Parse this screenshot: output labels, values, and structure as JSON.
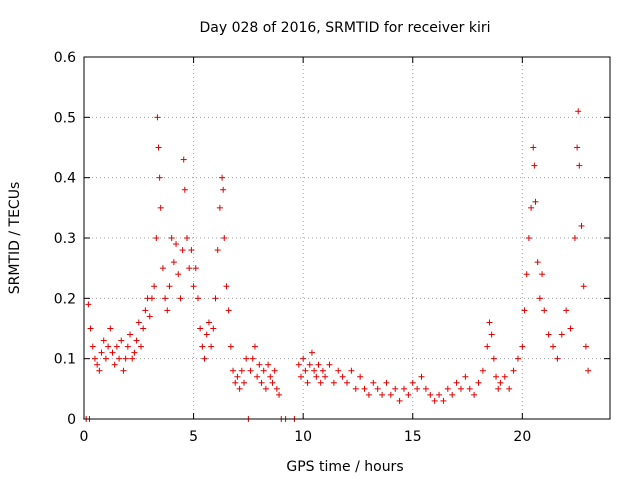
{
  "chart_data": {
    "type": "scatter",
    "title": "Day 028 of 2016, SRMTID for receiver kiri",
    "xlabel": "GPS time / hours",
    "ylabel": "SRMTID / TECUs",
    "xlim": [
      0,
      24
    ],
    "ylim": [
      0,
      0.6
    ],
    "xticks": [
      0,
      5,
      10,
      15,
      20
    ],
    "yticks": [
      0,
      0.1,
      0.2,
      0.3,
      0.4,
      0.5,
      0.6
    ],
    "xtick_labels": [
      "0",
      "5",
      "10",
      "15",
      "20"
    ],
    "ytick_labels": [
      "0",
      "0.1",
      "0.2",
      "0.3",
      "0.4",
      "0.5",
      "0.6"
    ],
    "grid": true,
    "marker": "+",
    "color": "#e00000",
    "series": [
      {
        "name": "SRMTID",
        "points": [
          [
            0.1,
            0.0
          ],
          [
            0.25,
            0.0
          ],
          [
            0.2,
            0.19
          ],
          [
            0.3,
            0.15
          ],
          [
            0.4,
            0.12
          ],
          [
            0.5,
            0.1
          ],
          [
            0.6,
            0.09
          ],
          [
            0.7,
            0.08
          ],
          [
            0.8,
            0.11
          ],
          [
            0.9,
            0.13
          ],
          [
            1.0,
            0.1
          ],
          [
            1.1,
            0.12
          ],
          [
            1.2,
            0.15
          ],
          [
            1.3,
            0.11
          ],
          [
            1.4,
            0.09
          ],
          [
            1.5,
            0.12
          ],
          [
            1.6,
            0.1
          ],
          [
            1.7,
            0.13
          ],
          [
            1.8,
            0.08
          ],
          [
            1.9,
            0.1
          ],
          [
            2.0,
            0.12
          ],
          [
            2.1,
            0.14
          ],
          [
            2.2,
            0.1
          ],
          [
            2.3,
            0.11
          ],
          [
            2.4,
            0.13
          ],
          [
            2.5,
            0.16
          ],
          [
            2.6,
            0.12
          ],
          [
            2.7,
            0.15
          ],
          [
            2.8,
            0.18
          ],
          [
            2.9,
            0.2
          ],
          [
            3.0,
            0.17
          ],
          [
            3.1,
            0.2
          ],
          [
            3.2,
            0.22
          ],
          [
            3.3,
            0.3
          ],
          [
            3.35,
            0.5
          ],
          [
            3.4,
            0.45
          ],
          [
            3.45,
            0.4
          ],
          [
            3.5,
            0.35
          ],
          [
            3.6,
            0.25
          ],
          [
            3.7,
            0.2
          ],
          [
            3.8,
            0.18
          ],
          [
            3.9,
            0.22
          ],
          [
            4.0,
            0.3
          ],
          [
            4.1,
            0.26
          ],
          [
            4.2,
            0.29
          ],
          [
            4.3,
            0.24
          ],
          [
            4.4,
            0.2
          ],
          [
            4.5,
            0.28
          ],
          [
            4.55,
            0.43
          ],
          [
            4.6,
            0.38
          ],
          [
            4.7,
            0.3
          ],
          [
            4.8,
            0.25
          ],
          [
            4.9,
            0.28
          ],
          [
            5.0,
            0.22
          ],
          [
            5.1,
            0.25
          ],
          [
            5.2,
            0.2
          ],
          [
            5.3,
            0.15
          ],
          [
            5.4,
            0.12
          ],
          [
            5.5,
            0.1
          ],
          [
            5.6,
            0.14
          ],
          [
            5.7,
            0.16
          ],
          [
            5.8,
            0.12
          ],
          [
            5.9,
            0.15
          ],
          [
            6.0,
            0.2
          ],
          [
            6.1,
            0.28
          ],
          [
            6.2,
            0.35
          ],
          [
            6.3,
            0.4
          ],
          [
            6.35,
            0.38
          ],
          [
            6.4,
            0.3
          ],
          [
            6.5,
            0.22
          ],
          [
            6.6,
            0.18
          ],
          [
            6.7,
            0.12
          ],
          [
            6.8,
            0.08
          ],
          [
            6.9,
            0.06
          ],
          [
            7.0,
            0.07
          ],
          [
            7.1,
            0.05
          ],
          [
            7.2,
            0.08
          ],
          [
            7.3,
            0.06
          ],
          [
            7.4,
            0.1
          ],
          [
            7.5,
            0.0
          ],
          [
            7.6,
            0.08
          ],
          [
            7.7,
            0.1
          ],
          [
            7.8,
            0.12
          ],
          [
            7.9,
            0.07
          ],
          [
            8.0,
            0.09
          ],
          [
            8.1,
            0.06
          ],
          [
            8.2,
            0.08
          ],
          [
            8.3,
            0.05
          ],
          [
            8.4,
            0.09
          ],
          [
            8.5,
            0.07
          ],
          [
            8.6,
            0.06
          ],
          [
            8.7,
            0.08
          ],
          [
            8.8,
            0.05
          ],
          [
            8.9,
            0.04
          ],
          [
            9.0,
            0.0
          ],
          [
            9.2,
            0.0
          ],
          [
            9.6,
            0.0
          ],
          [
            9.8,
            0.09
          ],
          [
            9.9,
            0.07
          ],
          [
            10.0,
            0.1
          ],
          [
            10.1,
            0.08
          ],
          [
            10.2,
            0.06
          ],
          [
            10.3,
            0.09
          ],
          [
            10.4,
            0.11
          ],
          [
            10.5,
            0.08
          ],
          [
            10.6,
            0.07
          ],
          [
            10.7,
            0.09
          ],
          [
            10.8,
            0.06
          ],
          [
            10.9,
            0.08
          ],
          [
            11.0,
            0.07
          ],
          [
            11.2,
            0.09
          ],
          [
            11.4,
            0.06
          ],
          [
            11.6,
            0.08
          ],
          [
            11.8,
            0.07
          ],
          [
            12.0,
            0.06
          ],
          [
            12.2,
            0.08
          ],
          [
            12.4,
            0.05
          ],
          [
            12.6,
            0.07
          ],
          [
            12.8,
            0.05
          ],
          [
            13.0,
            0.04
          ],
          [
            13.2,
            0.06
          ],
          [
            13.4,
            0.05
          ],
          [
            13.6,
            0.04
          ],
          [
            13.8,
            0.06
          ],
          [
            14.0,
            0.04
          ],
          [
            14.2,
            0.05
          ],
          [
            14.4,
            0.03
          ],
          [
            14.6,
            0.05
          ],
          [
            14.8,
            0.04
          ],
          [
            15.0,
            0.06
          ],
          [
            15.2,
            0.05
          ],
          [
            15.4,
            0.07
          ],
          [
            15.6,
            0.05
          ],
          [
            15.8,
            0.04
          ],
          [
            16.0,
            0.03
          ],
          [
            16.2,
            0.04
          ],
          [
            16.4,
            0.03
          ],
          [
            16.6,
            0.05
          ],
          [
            16.8,
            0.04
          ],
          [
            17.0,
            0.06
          ],
          [
            17.2,
            0.05
          ],
          [
            17.4,
            0.07
          ],
          [
            17.6,
            0.05
          ],
          [
            17.8,
            0.04
          ],
          [
            18.0,
            0.06
          ],
          [
            18.2,
            0.08
          ],
          [
            18.4,
            0.12
          ],
          [
            18.5,
            0.16
          ],
          [
            18.6,
            0.14
          ],
          [
            18.7,
            0.1
          ],
          [
            18.8,
            0.07
          ],
          [
            18.9,
            0.05
          ],
          [
            19.0,
            0.06
          ],
          [
            19.2,
            0.07
          ],
          [
            19.4,
            0.05
          ],
          [
            19.6,
            0.08
          ],
          [
            19.8,
            0.1
          ],
          [
            20.0,
            0.12
          ],
          [
            20.1,
            0.18
          ],
          [
            20.2,
            0.24
          ],
          [
            20.3,
            0.3
          ],
          [
            20.4,
            0.35
          ],
          [
            20.5,
            0.45
          ],
          [
            20.55,
            0.42
          ],
          [
            20.6,
            0.36
          ],
          [
            20.7,
            0.26
          ],
          [
            20.8,
            0.2
          ],
          [
            20.9,
            0.24
          ],
          [
            21.0,
            0.18
          ],
          [
            21.2,
            0.14
          ],
          [
            21.4,
            0.12
          ],
          [
            21.6,
            0.1
          ],
          [
            21.8,
            0.14
          ],
          [
            22.0,
            0.18
          ],
          [
            22.2,
            0.15
          ],
          [
            22.4,
            0.3
          ],
          [
            22.5,
            0.45
          ],
          [
            22.55,
            0.51
          ],
          [
            22.6,
            0.42
          ],
          [
            22.7,
            0.32
          ],
          [
            22.8,
            0.22
          ],
          [
            22.9,
            0.12
          ],
          [
            23.0,
            0.08
          ]
        ]
      }
    ]
  }
}
